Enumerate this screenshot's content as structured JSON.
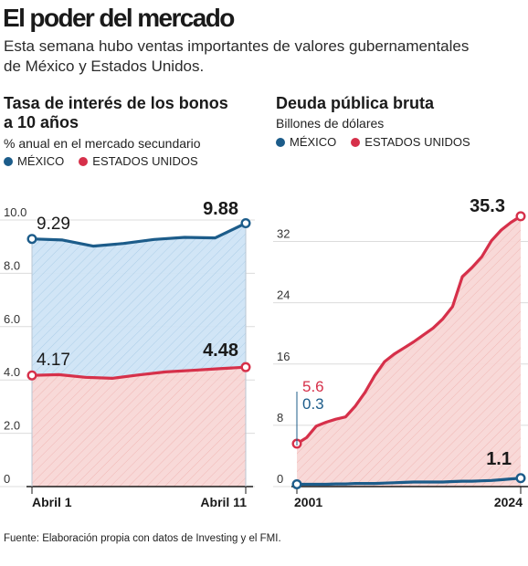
{
  "header": {
    "title": "El poder del mercado",
    "subtitle_line1": "Esta semana hubo ventas importantes de valores gubernamentales",
    "subtitle_line2": "de México y Estados Unidos."
  },
  "colors": {
    "mexico": "#1c5c8a",
    "usa": "#d6304a",
    "mexico_fill": "#cfe4f5",
    "usa_fill": "#f8d7d6"
  },
  "chart_data": [
    {
      "type": "line",
      "title_line1": "Tasa de interés de los bonos",
      "title_line2": "a 10 años",
      "unit": "% anual en el mercado secundario",
      "legend": [
        "MÉXICO",
        "ESTADOS UNIDOS"
      ],
      "ylim": [
        0,
        10
      ],
      "yticks": [
        "10.0",
        "8.0",
        "6.0",
        "4.0",
        "2.0",
        "0"
      ],
      "ytick_values": [
        10,
        8,
        6,
        4,
        2,
        0
      ],
      "xtick_labels": [
        "Abril 1",
        "Abril 11"
      ],
      "series": [
        {
          "name": "MÉXICO",
          "values": [
            9.29,
            9.25,
            9.02,
            9.12,
            9.27,
            9.35,
            9.33,
            9.88
          ]
        },
        {
          "name": "ESTADOS UNIDOS",
          "values": [
            4.17,
            4.2,
            4.1,
            4.06,
            4.19,
            4.3,
            4.36,
            4.42,
            4.48
          ]
        }
      ],
      "labels": {
        "mexico_start": "9.29",
        "mexico_end": "9.88",
        "usa_start": "4.17",
        "usa_end": "4.48"
      }
    },
    {
      "type": "line",
      "title": "Deuda pública bruta",
      "unit": "Billones de dólares",
      "legend": [
        "MÉXICO",
        "ESTADOS UNIDOS"
      ],
      "ylim": [
        0,
        36
      ],
      "yticks": [
        "32",
        "24",
        "16",
        "8",
        "0"
      ],
      "ytick_values": [
        32,
        24,
        16,
        8,
        0
      ],
      "x": [
        2001,
        2002,
        2003,
        2004,
        2005,
        2006,
        2007,
        2008,
        2009,
        2010,
        2011,
        2012,
        2013,
        2014,
        2015,
        2016,
        2017,
        2018,
        2019,
        2020,
        2021,
        2022,
        2023,
        2024
      ],
      "xtick_labels": [
        "2001",
        "2024"
      ],
      "series": [
        {
          "name": "MÉXICO",
          "values": [
            0.3,
            0.3,
            0.3,
            0.3,
            0.35,
            0.35,
            0.4,
            0.4,
            0.4,
            0.45,
            0.5,
            0.55,
            0.6,
            0.6,
            0.6,
            0.6,
            0.65,
            0.7,
            0.7,
            0.75,
            0.8,
            0.9,
            1.0,
            1.1
          ]
        },
        {
          "name": "ESTADOS UNIDOS",
          "values": [
            5.6,
            6.4,
            7.9,
            8.4,
            8.8,
            9.1,
            10.5,
            12.3,
            14.5,
            16.3,
            17.3,
            18.1,
            18.9,
            19.8,
            20.7,
            21.9,
            23.5,
            27.4,
            28.6,
            30.0,
            32.1,
            33.5,
            34.5,
            35.3
          ]
        }
      ],
      "labels": {
        "usa_start": "5.6",
        "mexico_start": "0.3",
        "usa_end": "35.3",
        "mexico_end": "1.1"
      }
    }
  ],
  "footer": {
    "source": "Fuente: Elaboración propia con datos de Investing y el FMI."
  }
}
